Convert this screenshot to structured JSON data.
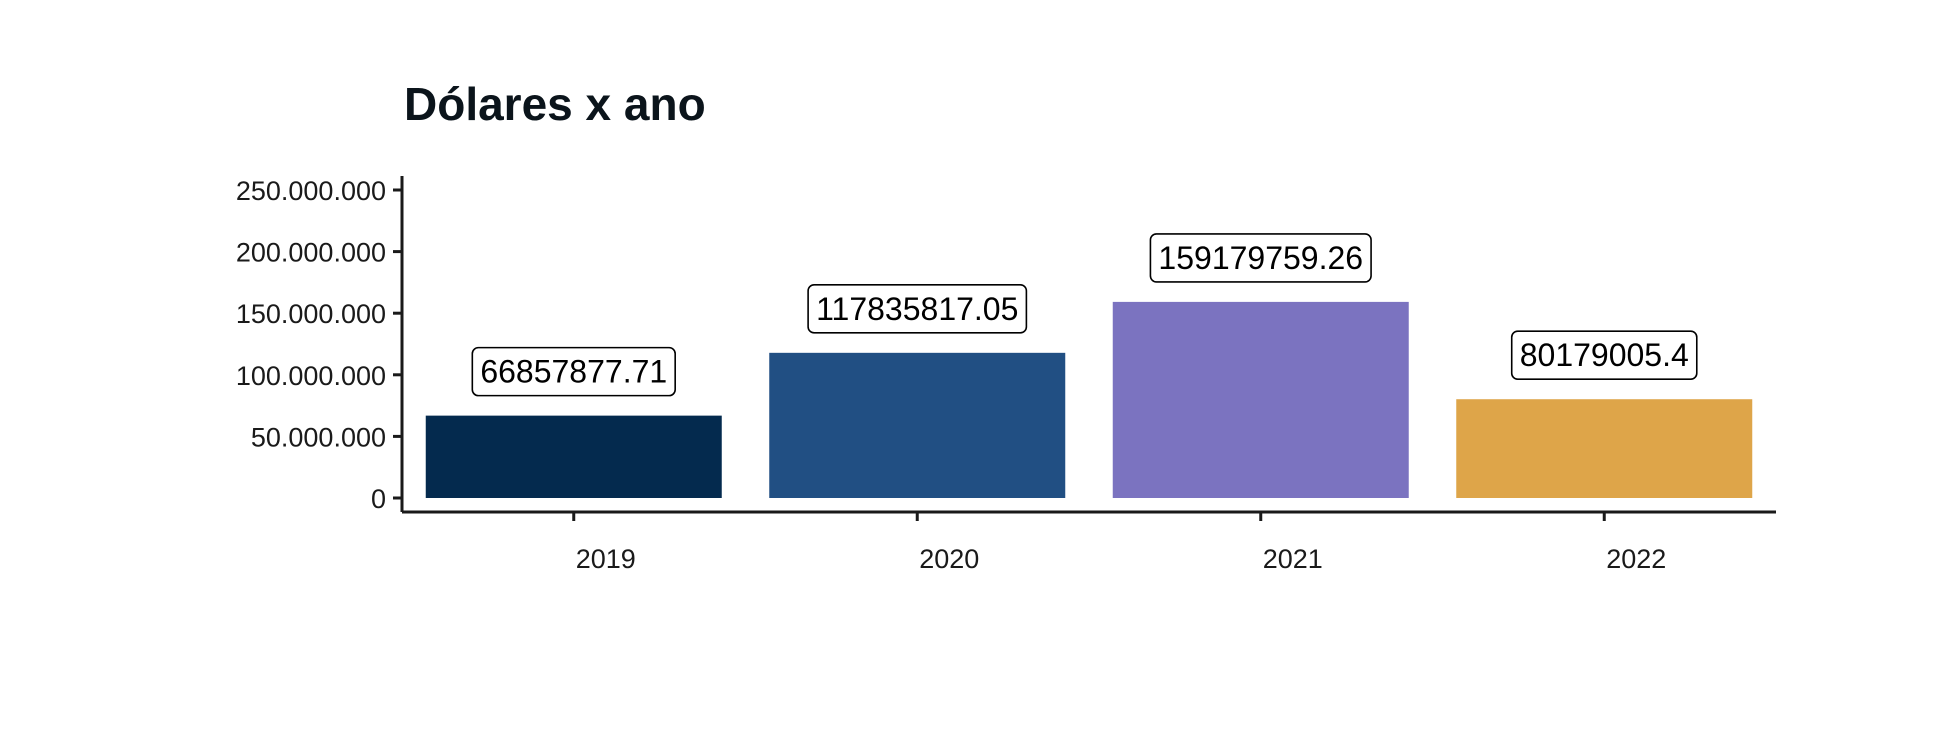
{
  "chart_data": {
    "type": "bar",
    "title": "Dólares x ano",
    "xlabel": "",
    "ylabel": "",
    "categories": [
      "2019",
      "2020",
      "2021",
      "2022"
    ],
    "values": [
      66857877.71,
      117835817.05,
      159179759.26,
      80179005.4
    ],
    "data_labels": [
      "66857877.71",
      "117835817.05",
      "159179759.26",
      "80179005.4"
    ],
    "colors": [
      "#042a4e",
      "#214f83",
      "#7b73c0",
      "#dea549"
    ],
    "ylim": [
      0,
      250000000
    ],
    "yticks": [
      0,
      50000000,
      100000000,
      150000000,
      200000000,
      250000000
    ],
    "ytick_labels": [
      "0",
      "50.000.000",
      "100.000.000",
      "150.000.000",
      "200.000.000",
      "250.000.000"
    ],
    "grid": false,
    "legend": "none"
  }
}
